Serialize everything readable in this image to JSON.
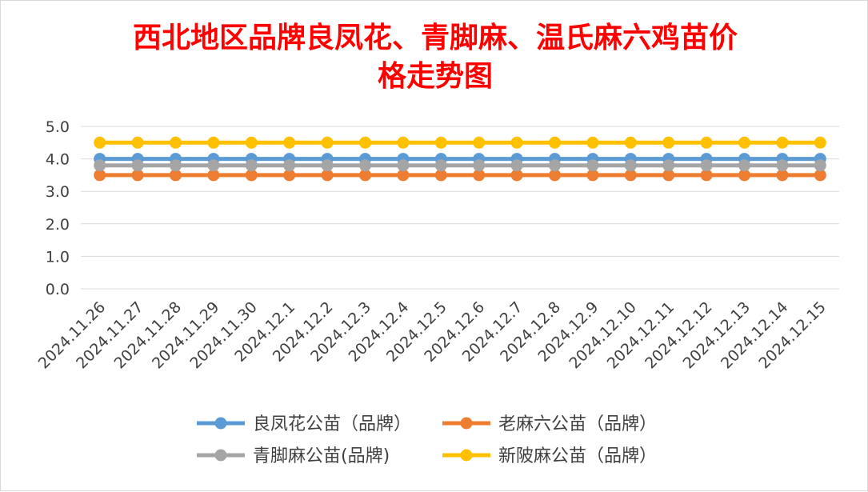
{
  "chart_data": {
    "type": "line",
    "title_lines": [
      "西北地区品牌良凤花、青脚麻、温氏麻六鸡苗价",
      "格走势图"
    ],
    "xlabel": "",
    "ylabel": "",
    "ylim": [
      0,
      5
    ],
    "yticks": [
      "0.0",
      "1.0",
      "2.0",
      "3.0",
      "4.0",
      "5.0"
    ],
    "grid": true,
    "legend_position": "bottom",
    "categories": [
      "2024.11.26",
      "2024.11.27",
      "2024.11.28",
      "2024.11.29",
      "2024.11.30",
      "2024.12.1",
      "2024.12.2",
      "2024.12.3",
      "2024.12.4",
      "2024.12.5",
      "2024.12.6",
      "2024.12.7",
      "2024.12.8",
      "2024.12.9",
      "2024.12.10",
      "2024.12.11",
      "2024.12.12",
      "2024.12.13",
      "2024.12.14",
      "2024.12.15"
    ],
    "series": [
      {
        "name": "良凤花公苗（品牌）",
        "color": "#5b9bd5",
        "values": [
          4.0,
          4.0,
          4.0,
          4.0,
          4.0,
          4.0,
          4.0,
          4.0,
          4.0,
          4.0,
          4.0,
          4.0,
          4.0,
          4.0,
          4.0,
          4.0,
          4.0,
          4.0,
          4.0,
          4.0
        ]
      },
      {
        "name": "老麻六公苗（品牌）",
        "color": "#ed7d31",
        "values": [
          3.5,
          3.5,
          3.5,
          3.5,
          3.5,
          3.5,
          3.5,
          3.5,
          3.5,
          3.5,
          3.5,
          3.5,
          3.5,
          3.5,
          3.5,
          3.5,
          3.5,
          3.5,
          3.5,
          3.5
        ]
      },
      {
        "name": "青脚麻公苗(品牌)",
        "color": "#a5a5a5",
        "values": [
          3.8,
          3.8,
          3.8,
          3.8,
          3.8,
          3.8,
          3.8,
          3.8,
          3.8,
          3.8,
          3.8,
          3.8,
          3.8,
          3.8,
          3.8,
          3.8,
          3.8,
          3.8,
          3.8,
          3.8
        ]
      },
      {
        "name": "新陂麻公苗（品牌）",
        "color": "#ffc000",
        "values": [
          4.5,
          4.5,
          4.5,
          4.5,
          4.5,
          4.5,
          4.5,
          4.5,
          4.5,
          4.5,
          4.5,
          4.5,
          4.5,
          4.5,
          4.5,
          4.5,
          4.5,
          4.5,
          4.5,
          4.5
        ]
      }
    ]
  }
}
